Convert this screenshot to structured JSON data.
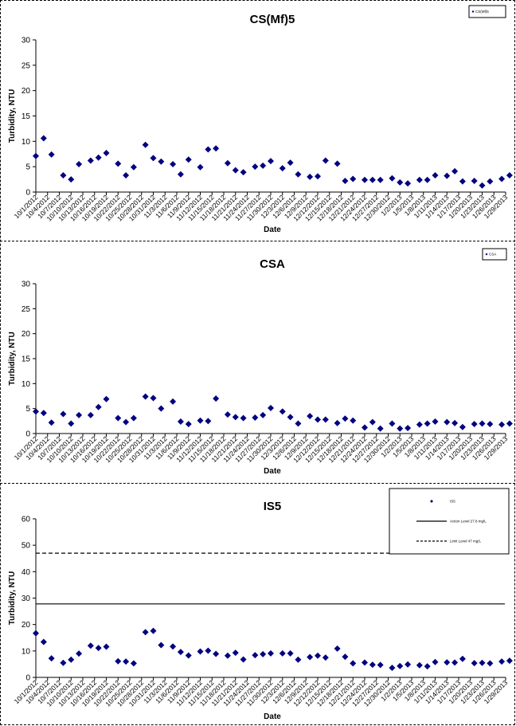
{
  "chart_data": [
    {
      "type": "scatter",
      "title": "CS(Mf)5",
      "xlabel": "Date",
      "ylabel": "Turbidity, NTU",
      "ylim": [
        0,
        30
      ],
      "yticks": [
        0,
        5,
        10,
        15,
        20,
        25,
        30
      ],
      "xlim": [
        "10/1/2012",
        "1/29/2013"
      ],
      "xticks": [
        "10/1/2012",
        "10/4/2012",
        "10/7/2012",
        "10/10/2012",
        "10/13/2012",
        "10/16/2012",
        "10/19/2012",
        "10/22/2012",
        "10/25/2012",
        "10/28/2012",
        "10/31/2012",
        "11/3/2012",
        "11/6/2012",
        "11/9/2012",
        "11/12/2012",
        "11/15/2012",
        "11/18/2012",
        "11/21/2012",
        "11/24/2012",
        "11/27/2012",
        "11/30/2012",
        "12/3/2012",
        "12/6/2012",
        "12/9/2012",
        "12/12/2012",
        "12/15/2012",
        "12/18/2012",
        "12/21/2012",
        "12/24/2012",
        "12/27/2012",
        "12/30/2012",
        "1/2/2013",
        "1/5/2013",
        "1/8/2013",
        "1/11/2013",
        "1/14/2013",
        "1/17/2013",
        "1/20/2013",
        "1/23/2013",
        "1/26/2013",
        "1/29/2013"
      ],
      "legend": {
        "position": "top-right",
        "entries": [
          {
            "label": "CS(Mf)5",
            "marker": "diamond"
          }
        ]
      },
      "series": [
        {
          "name": "CS(Mf)5",
          "color": "#000080",
          "x": [
            "10/1/2012",
            "10/3/2012",
            "10/5/2012",
            "10/8/2012",
            "10/10/2012",
            "10/12/2012",
            "10/15/2012",
            "10/17/2012",
            "10/19/2012",
            "10/22/2012",
            "10/24/2012",
            "10/26/2012",
            "10/29/2012",
            "10/31/2012",
            "11/2/2012",
            "11/5/2012",
            "11/7/2012",
            "11/9/2012",
            "11/12/2012",
            "11/14/2012",
            "11/16/2012",
            "11/19/2012",
            "11/21/2012",
            "11/23/2012",
            "11/26/2012",
            "11/28/2012",
            "11/30/2012",
            "12/3/2012",
            "12/5/2012",
            "12/7/2012",
            "12/10/2012",
            "12/12/2012",
            "12/14/2012",
            "12/17/2012",
            "12/19/2012",
            "12/21/2012",
            "12/24/2012",
            "12/26/2012",
            "12/28/2012",
            "12/31/2012",
            "1/2/2013",
            "1/4/2013",
            "1/7/2013",
            "1/9/2013",
            "1/11/2013",
            "1/14/2013",
            "1/16/2013",
            "1/18/2013",
            "1/21/2013",
            "1/23/2013",
            "1/25/2013",
            "1/28/2013",
            "1/30/2013"
          ],
          "y": [
            7.1,
            10.6,
            7.4,
            3.3,
            2.5,
            5.5,
            6.2,
            6.8,
            7.7,
            5.6,
            3.3,
            4.9,
            9.3,
            6.7,
            6.0,
            5.5,
            3.5,
            6.4,
            4.9,
            8.4,
            8.6,
            5.7,
            4.3,
            3.9,
            5.0,
            5.2,
            6.1,
            4.7,
            5.8,
            3.5,
            3.0,
            3.1,
            6.2,
            5.6,
            2.2,
            2.6,
            2.4,
            2.4,
            2.4,
            2.7,
            1.9,
            1.7,
            2.4,
            2.4,
            3.3,
            3.2,
            4.1,
            2.1,
            2.2,
            1.3,
            2.1,
            2.6,
            3.3
          ]
        }
      ]
    },
    {
      "type": "scatter",
      "title": "CSA",
      "xlabel": "Date",
      "ylabel": "Turbidity, NTU",
      "ylim": [
        0,
        30
      ],
      "yticks": [
        0,
        5,
        10,
        15,
        20,
        25,
        30
      ],
      "xlim": [
        "10/1/2012",
        "1/29/2013"
      ],
      "xticks": [
        "10/1/2012",
        "10/4/2012",
        "10/7/2012",
        "10/10/2012",
        "10/13/2012",
        "10/16/2012",
        "10/19/2012",
        "10/22/2012",
        "10/25/2012",
        "10/28/2012",
        "10/31/2012",
        "11/3/2012",
        "11/6/2012",
        "11/9/2012",
        "11/12/2012",
        "11/15/2012",
        "11/18/2012",
        "11/21/2012",
        "11/24/2012",
        "11/27/2012",
        "11/30/2012",
        "12/3/2012",
        "12/6/2012",
        "12/9/2012",
        "12/12/2012",
        "12/15/2012",
        "12/18/2012",
        "12/21/2012",
        "12/24/2012",
        "12/27/2012",
        "12/30/2012",
        "1/2/2013",
        "1/5/2013",
        "1/8/2013",
        "1/11/2013",
        "1/14/2013",
        "1/17/2013",
        "1/20/2013",
        "1/23/2013",
        "1/26/2013",
        "1/29/2013"
      ],
      "legend": {
        "position": "top-right",
        "entries": [
          {
            "label": "CSA",
            "marker": "diamond"
          }
        ]
      },
      "series": [
        {
          "name": "CSA",
          "color": "#000080",
          "x": [
            "10/1/2012",
            "10/3/2012",
            "10/5/2012",
            "10/8/2012",
            "10/10/2012",
            "10/12/2012",
            "10/15/2012",
            "10/17/2012",
            "10/19/2012",
            "10/22/2012",
            "10/24/2012",
            "10/26/2012",
            "10/29/2012",
            "10/31/2012",
            "11/2/2012",
            "11/5/2012",
            "11/7/2012",
            "11/9/2012",
            "11/12/2012",
            "11/14/2012",
            "11/16/2012",
            "11/19/2012",
            "11/21/2012",
            "11/23/2012",
            "11/26/2012",
            "11/28/2012",
            "11/30/2012",
            "12/3/2012",
            "12/5/2012",
            "12/7/2012",
            "12/10/2012",
            "12/12/2012",
            "12/14/2012",
            "12/17/2012",
            "12/19/2012",
            "12/21/2012",
            "12/24/2012",
            "12/26/2012",
            "12/28/2012",
            "12/31/2012",
            "1/2/2013",
            "1/4/2013",
            "1/7/2013",
            "1/9/2013",
            "1/11/2013",
            "1/14/2013",
            "1/16/2013",
            "1/18/2013",
            "1/21/2013",
            "1/23/2013",
            "1/25/2013",
            "1/28/2013",
            "1/30/2013"
          ],
          "y": [
            4.4,
            4.1,
            2.2,
            3.9,
            2.0,
            3.7,
            3.7,
            5.3,
            6.9,
            3.1,
            2.3,
            3.1,
            7.4,
            7.1,
            5.0,
            6.4,
            2.4,
            1.9,
            2.6,
            2.5,
            7.0,
            3.8,
            3.3,
            3.1,
            3.2,
            3.7,
            5.1,
            4.4,
            3.3,
            2.0,
            3.5,
            2.8,
            2.8,
            2.1,
            3.0,
            2.6,
            1.2,
            2.3,
            1.0,
            2.0,
            1.0,
            1.1,
            1.8,
            2.0,
            2.4,
            2.3,
            2.1,
            1.3,
            1.9,
            2.0,
            1.9,
            1.8,
            2.0
          ]
        }
      ]
    },
    {
      "type": "scatter",
      "title": "IS5",
      "xlabel": "Date",
      "ylabel": "Turbidity, NTU",
      "ylim": [
        0,
        60
      ],
      "yticks": [
        0,
        10,
        20,
        30,
        40,
        50,
        60
      ],
      "xlim": [
        "10/1/2012",
        "1/29/2013"
      ],
      "xticks": [
        "10/1/2012",
        "10/4/2012",
        "10/7/2012",
        "10/10/2012",
        "10/13/2012",
        "10/16/2012",
        "10/19/2012",
        "10/22/2012",
        "10/25/2012",
        "10/28/2012",
        "10/31/2012",
        "11/3/2012",
        "11/6/2012",
        "11/9/2012",
        "11/12/2012",
        "11/15/2012",
        "11/18/2012",
        "11/21/2012",
        "11/24/2012",
        "11/27/2012",
        "11/30/2012",
        "12/3/2012",
        "12/6/2012",
        "12/9/2012",
        "12/12/2012",
        "12/15/2012",
        "12/18/2012",
        "12/21/2012",
        "12/24/2012",
        "12/27/2012",
        "12/30/2012",
        "1/2/2013",
        "1/5/2013",
        "1/8/2013",
        "1/11/2013",
        "1/14/2013",
        "1/17/2013",
        "1/20/2013",
        "1/23/2013",
        "1/26/2013",
        "1/29/2013"
      ],
      "legend": {
        "position": "top-right",
        "entries": [
          {
            "label": "IS5",
            "marker": "diamond"
          },
          {
            "label": "Action Level 27.8 mg/L",
            "marker": "solid-line"
          },
          {
            "label": "Limit Level 47 mg/L",
            "marker": "dashed-line"
          }
        ]
      },
      "reference_lines": [
        {
          "name": "Action Level 27.8 mg/L",
          "y": 27.8,
          "style": "solid"
        },
        {
          "name": "Limit Level 47 mg/L",
          "y": 47,
          "style": "dashed"
        }
      ],
      "series": [
        {
          "name": "IS5",
          "color": "#000080",
          "x": [
            "10/1/2012",
            "10/3/2012",
            "10/5/2012",
            "10/8/2012",
            "10/10/2012",
            "10/12/2012",
            "10/15/2012",
            "10/17/2012",
            "10/19/2012",
            "10/22/2012",
            "10/24/2012",
            "10/26/2012",
            "10/29/2012",
            "10/31/2012",
            "11/2/2012",
            "11/5/2012",
            "11/7/2012",
            "11/9/2012",
            "11/12/2012",
            "11/14/2012",
            "11/16/2012",
            "11/19/2012",
            "11/21/2012",
            "11/23/2012",
            "11/26/2012",
            "11/28/2012",
            "11/30/2012",
            "12/3/2012",
            "12/5/2012",
            "12/7/2012",
            "12/10/2012",
            "12/12/2012",
            "12/14/2012",
            "12/17/2012",
            "12/19/2012",
            "12/21/2012",
            "12/24/2012",
            "12/26/2012",
            "12/28/2012",
            "12/31/2012",
            "1/2/2013",
            "1/4/2013",
            "1/7/2013",
            "1/9/2013",
            "1/11/2013",
            "1/14/2013",
            "1/16/2013",
            "1/18/2013",
            "1/21/2013",
            "1/23/2013",
            "1/25/2013",
            "1/28/2013",
            "1/30/2013"
          ],
          "y": [
            16.7,
            13.4,
            7.2,
            5.5,
            6.7,
            9.0,
            12.0,
            11.1,
            11.6,
            6.1,
            6.0,
            5.3,
            17.1,
            17.6,
            12.2,
            11.7,
            9.6,
            8.3,
            9.8,
            10.1,
            8.9,
            8.2,
            9.3,
            6.8,
            8.4,
            8.8,
            9.1,
            9.1,
            9.1,
            6.7,
            7.7,
            8.2,
            7.5,
            10.9,
            7.8,
            5.3,
            5.6,
            4.8,
            4.7,
            3.6,
            4.3,
            4.9,
            4.6,
            4.2,
            5.8,
            5.7,
            5.6,
            7.0,
            5.4,
            5.5,
            5.3,
            6.0,
            6.3
          ]
        }
      ]
    }
  ]
}
